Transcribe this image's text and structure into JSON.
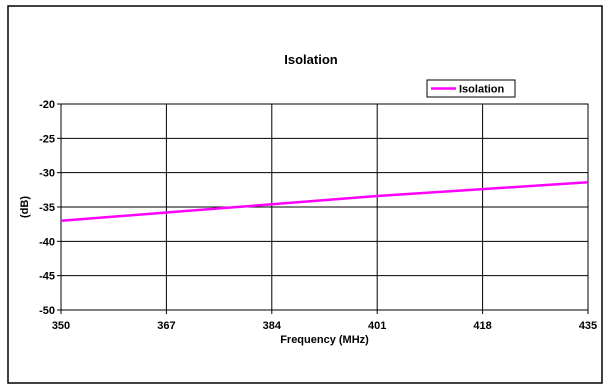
{
  "chart_data": {
    "type": "line",
    "title": "Isolation",
    "xlabel": "Frequency (MHz)",
    "ylabel": "(dB)",
    "xlim": [
      350,
      435
    ],
    "ylim": [
      -50,
      -20
    ],
    "xticks": [
      350,
      367,
      384,
      401,
      418,
      435
    ],
    "yticks": [
      -50,
      -45,
      -40,
      -35,
      -30,
      -25,
      -20
    ],
    "grid": true,
    "legend_position": "top-right",
    "series": [
      {
        "name": "Isolation",
        "color": "#ff00ff",
        "x": [
          350,
          367,
          384,
          401,
          418,
          435
        ],
        "y": [
          -37.0,
          -35.8,
          -34.6,
          -33.4,
          -32.4,
          -31.4
        ]
      }
    ]
  }
}
